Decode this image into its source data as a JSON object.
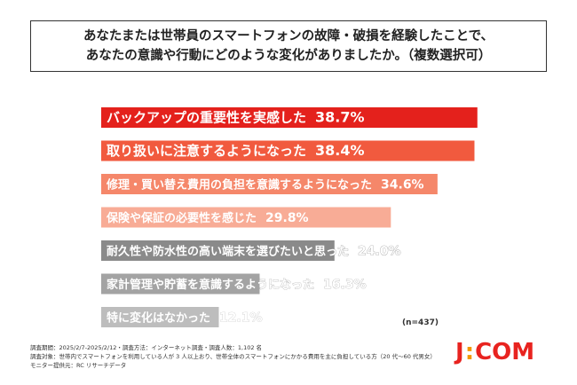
{
  "title": "あなたまたは世帯員のスマートフォンの故障・破損を経験したことで、\nあなたの意識や行動にどのような変化がありましたか。（複数選択可）",
  "chart_data": {
    "type": "bar",
    "orientation": "horizontal",
    "xlim": [
      0,
      40
    ],
    "categories": [
      "バックアップの重要性を実感した",
      "取り扱いに注意するようになった",
      "修理・買い替え費用の負担を意識するようになった",
      "保険や保証の必要性を感じた",
      "耐久性や防水性の高い端末を選びたいと思った",
      "家計管理や貯蓄を意識するようになった",
      "特に変化はなかった"
    ],
    "values": [
      38.7,
      38.4,
      34.6,
      29.8,
      24.0,
      16.3,
      12.1
    ],
    "value_labels": [
      "38.7%",
      "38.4%",
      "34.6%",
      "29.8%",
      "24.0%",
      "16.3%",
      "12.1%"
    ],
    "colors": [
      "#e4211c",
      "#f15a3e",
      "#f5876a",
      "#f8ac96",
      "#8a8a8a",
      "#a3a3a3",
      "#bdbdbd"
    ],
    "label_colors": [
      "#ffffff",
      "#ffffff",
      "#ffffff",
      "#ffffff",
      "#ffffff",
      "#ffffff",
      "#ffffff"
    ],
    "grid": false,
    "legend": "none"
  },
  "sample_size": "(n=437)",
  "footnotes": [
    "調査期間：2025/2/7-2025/2/12・調査方法：インターネット調査・調査人数：1,102 名",
    "調査対象：世帯内でスマートフォンを利用している人が 3 人以上おり、世帯全体のスマートフォンにかかる費用を主に負担している方（20 代～60 代男女）",
    "モニター提供元：RC リサーチデータ"
  ],
  "logo": {
    "left": "J",
    "colon": ":",
    "right": "COM"
  }
}
